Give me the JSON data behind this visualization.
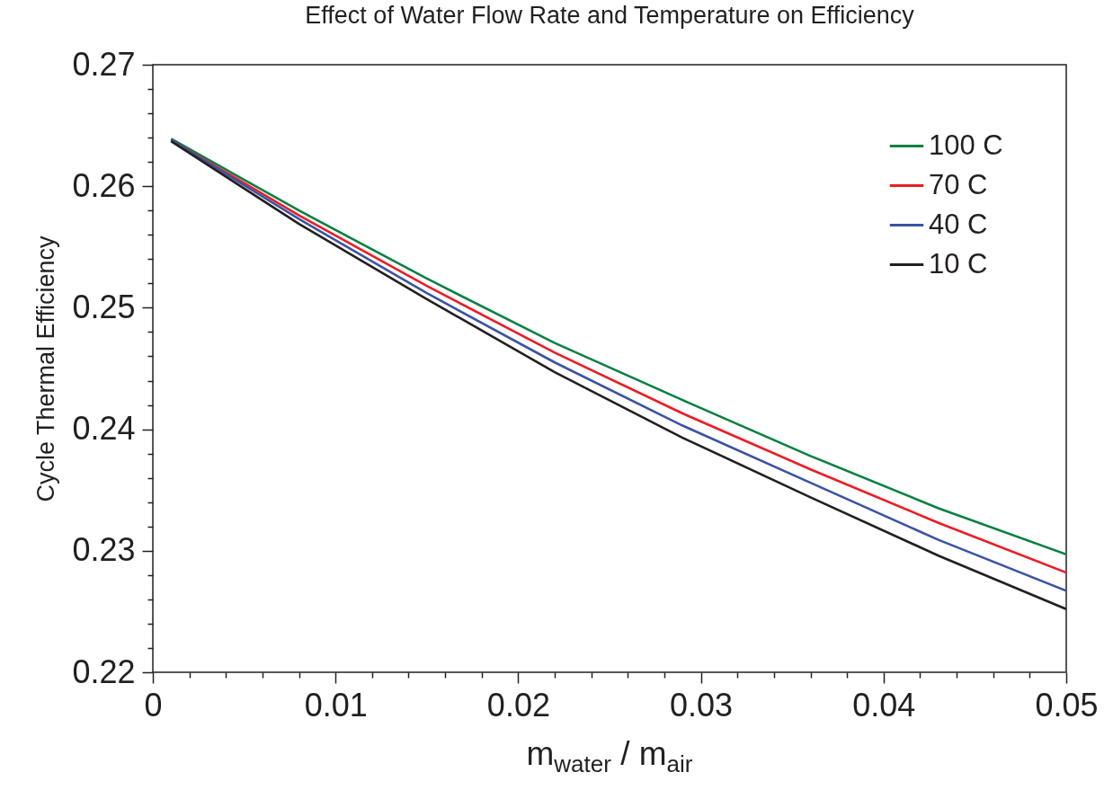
{
  "chart_data": {
    "type": "line",
    "title": "Effect of Water Flow Rate and Temperature on Efficiency",
    "xlabel": "m$_{water}$ / m$_{air}$",
    "ylabel": "Cycle Thermal Efficiency",
    "x": [
      0.001,
      0.008,
      0.015,
      0.022,
      0.029,
      0.036,
      0.043,
      0.05
    ],
    "series": [
      {
        "name": "100 C",
        "color": "#0a8040",
        "values": [
          0.2639,
          0.258,
          0.2524,
          0.2471,
          0.2424,
          0.2378,
          0.2335,
          0.2297
        ]
      },
      {
        "name": "70 C",
        "color": "#ed1c24",
        "values": [
          0.2638,
          0.2576,
          0.2518,
          0.2463,
          0.2413,
          0.2367,
          0.2323,
          0.2282
        ]
      },
      {
        "name": "40 C",
        "color": "#3a53a4",
        "values": [
          0.2638,
          0.2573,
          0.2512,
          0.2455,
          0.2403,
          0.2356,
          0.2309,
          0.2267
        ]
      },
      {
        "name": "10 C",
        "color": "#231f20",
        "values": [
          0.2637,
          0.2569,
          0.2507,
          0.2447,
          0.2393,
          0.2344,
          0.2296,
          0.2252
        ]
      }
    ],
    "xlim": [
      0,
      0.05
    ],
    "xticks": [
      0,
      {
        "value": 0.002,
        "label": null
      },
      {
        "value": 0.004,
        "label": null
      },
      {
        "value": 0.006,
        "label": null
      },
      {
        "value": 0.008,
        "label": null
      },
      0.01,
      {
        "value": 0.012,
        "label": null
      },
      {
        "value": 0.014,
        "label": null
      },
      {
        "value": 0.016,
        "label": null
      },
      {
        "value": 0.018,
        "label": null
      },
      0.02,
      {
        "value": 0.022,
        "label": null
      },
      {
        "value": 0.024,
        "label": null
      },
      {
        "value": 0.026,
        "label": null
      },
      {
        "value": 0.028,
        "label": null
      },
      0.03,
      {
        "value": 0.032,
        "label": null
      },
      {
        "value": 0.034,
        "label": null
      },
      {
        "value": 0.036,
        "label": null
      },
      {
        "value": 0.038,
        "label": null
      },
      0.04,
      {
        "value": 0.042,
        "label": null
      },
      {
        "value": 0.044,
        "label": null
      },
      {
        "value": 0.046,
        "label": null
      },
      {
        "value": 0.048,
        "label": null
      },
      0.05
    ],
    "ylim": [
      0.22,
      0.27
    ],
    "yticks": [
      0.22,
      {
        "value": 0.222,
        "label": null
      },
      {
        "value": 0.224,
        "label": null
      },
      {
        "value": 0.226,
        "label": null
      },
      {
        "value": 0.228,
        "label": null
      },
      0.23,
      {
        "value": 0.232,
        "label": null
      },
      {
        "value": 0.234,
        "label": null
      },
      {
        "value": 0.236,
        "label": null
      },
      {
        "value": 0.238,
        "label": null
      },
      0.24,
      {
        "value": 0.242,
        "label": null
      },
      {
        "value": 0.244,
        "label": null
      },
      {
        "value": 0.246,
        "label": null
      },
      {
        "value": 0.248,
        "label": null
      },
      0.25,
      {
        "value": 0.252,
        "label": null
      },
      {
        "value": 0.254,
        "label": null
      },
      {
        "value": 0.256,
        "label": null
      },
      {
        "value": 0.258,
        "label": null
      },
      0.26,
      {
        "value": 0.262,
        "label": null
      },
      {
        "value": 0.264,
        "label": null
      },
      {
        "value": 0.266,
        "label": null
      },
      {
        "value": 0.268,
        "label": null
      },
      0.27
    ],
    "grid": false,
    "legend": "top right",
    "marker": "none",
    "line_style": "solid"
  }
}
